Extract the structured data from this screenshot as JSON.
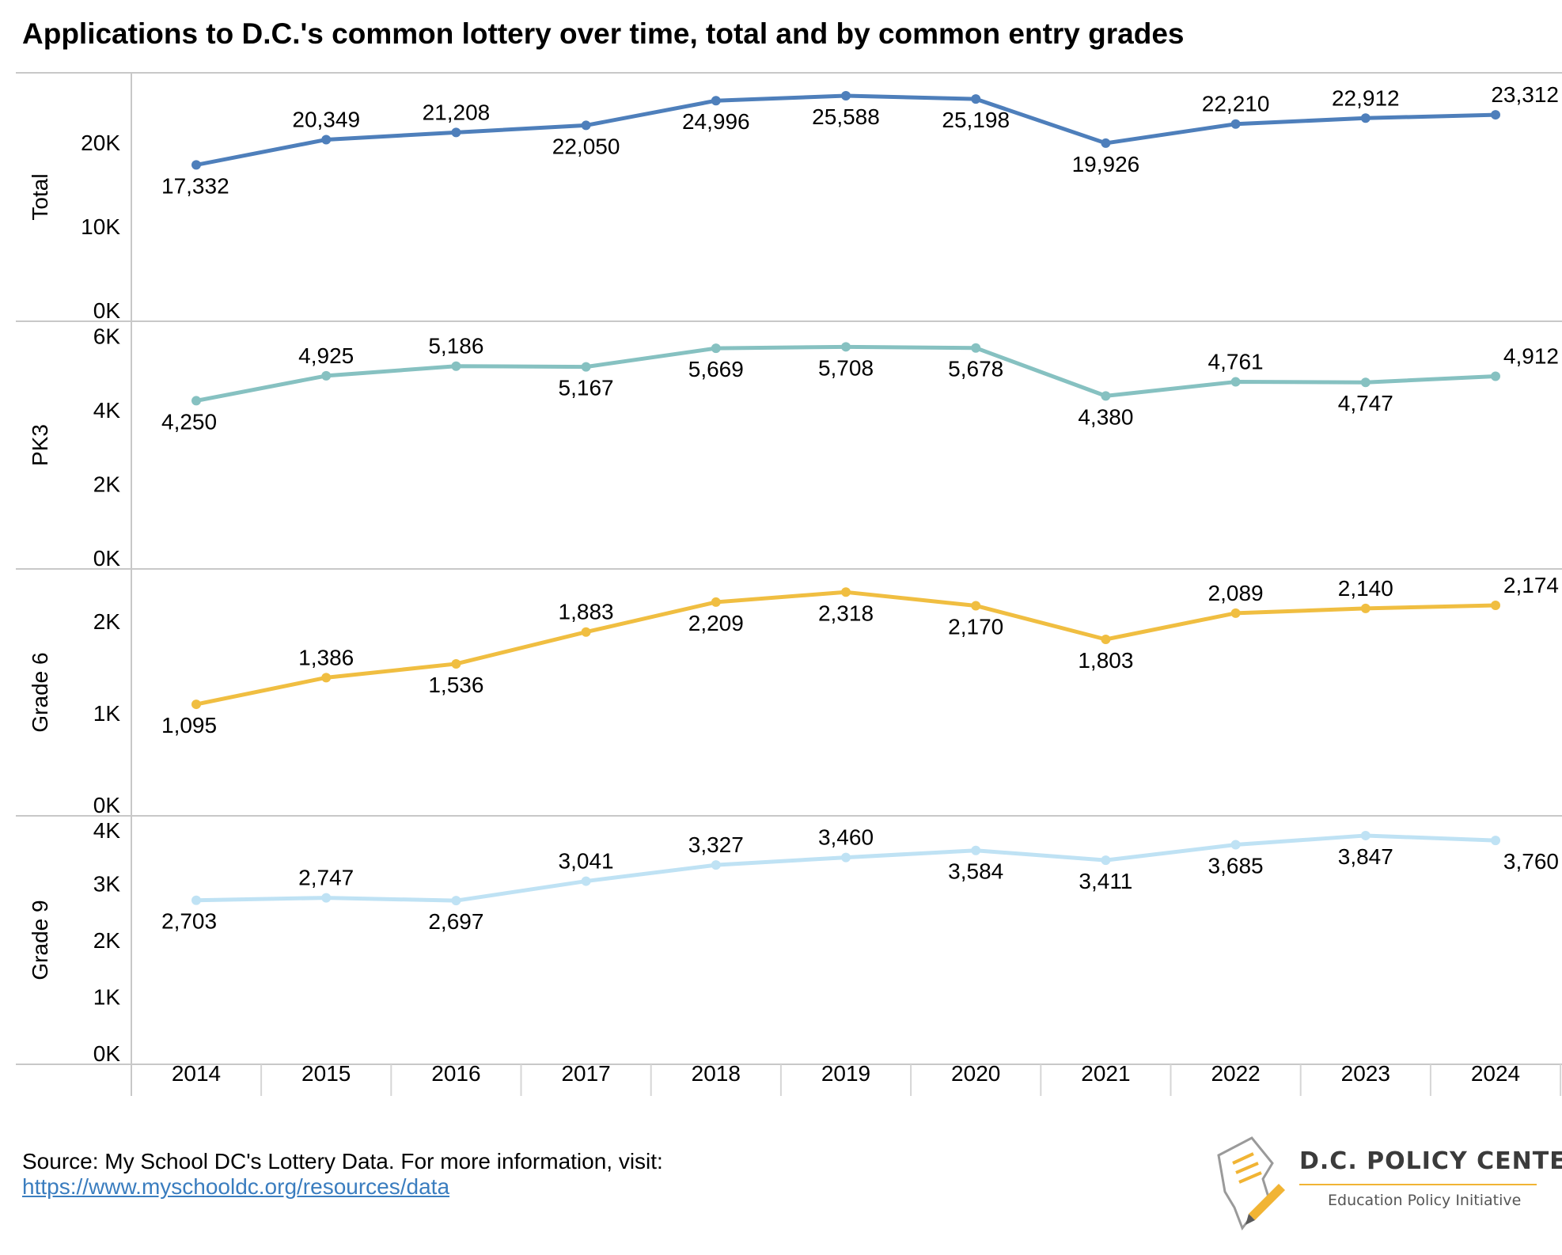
{
  "title": "Applications to D.C.'s common lottery over time, total and by common entry grades",
  "source": {
    "text": "Source: My School DC's Lottery Data. For more information, visit:",
    "link": "https://www.myschooldc.org/resources/data"
  },
  "logo": {
    "name": "D.C. POLICY CENTER",
    "subtitle": "Education Policy Initiative",
    "icon": "document-pen-icon"
  },
  "chart_data": {
    "type": "line",
    "x": [
      2014,
      2015,
      2016,
      2017,
      2018,
      2019,
      2020,
      2021,
      2022,
      2023,
      2024
    ],
    "x_tick_labels": [
      "2014",
      "2015",
      "2016",
      "2017",
      "2018",
      "2019",
      "2020",
      "2021",
      "2022",
      "2023",
      "2024"
    ],
    "grid": false,
    "panels": [
      {
        "name": "Total",
        "color": "#4e7fbb",
        "ylim": [
          0,
          27000
        ],
        "yticks": [
          0,
          10000,
          20000
        ],
        "ytick_labels": [
          "0K",
          "10K",
          "20K"
        ],
        "values": [
          17332,
          20349,
          21208,
          22050,
          24996,
          25588,
          25198,
          19926,
          22210,
          22912,
          23312
        ],
        "labels": [
          "17,332",
          "20,349",
          "21,208",
          "22,050",
          "24,996",
          "25,588",
          "25,198",
          "19,926",
          "22,210",
          "22,912",
          "23,312"
        ]
      },
      {
        "name": "PK3",
        "color": "#86c1c1",
        "ylim": [
          0,
          6100
        ],
        "yticks": [
          0,
          2000,
          4000,
          6000
        ],
        "ytick_labels": [
          "0K",
          "2K",
          "4K",
          "6K"
        ],
        "values": [
          4250,
          4925,
          5186,
          5167,
          5669,
          5708,
          5678,
          4380,
          4761,
          4747,
          4912
        ],
        "labels": [
          "4,250",
          "4,925",
          "5,186",
          "5,167",
          "5,669",
          "5,708",
          "5,678",
          "4,380",
          "4,761",
          "4,747",
          "4,912"
        ]
      },
      {
        "name": "Grade 6",
        "color": "#f0be41",
        "ylim": [
          0,
          2450
        ],
        "yticks": [
          0,
          1000,
          2000
        ],
        "ytick_labels": [
          "0K",
          "1K",
          "2K"
        ],
        "values": [
          1095,
          1386,
          1536,
          1883,
          2209,
          2318,
          2170,
          1803,
          2089,
          2140,
          2174
        ],
        "labels": [
          "1,095",
          "1,386",
          "1,536",
          "1,883",
          "2,209",
          "2,318",
          "2,170",
          "1,803",
          "2,089",
          "2,140",
          "2,174"
        ]
      },
      {
        "name": "Grade 9",
        "color": "#bfe2f4",
        "ylim": [
          0,
          4000
        ],
        "yticks": [
          0,
          1000,
          2000,
          3000,
          4000
        ],
        "ytick_labels": [
          "0K",
          "1K",
          "2K",
          "3K",
          "4K"
        ],
        "values": [
          2703,
          2747,
          2697,
          3041,
          3327,
          3460,
          3584,
          3411,
          3685,
          3847,
          3760
        ],
        "labels": [
          "2,703",
          "2,747",
          "2,697",
          "3,041",
          "3,327",
          "3,460",
          "3,584",
          "3,411",
          "3,685",
          "3,847",
          "3,760"
        ]
      }
    ]
  }
}
